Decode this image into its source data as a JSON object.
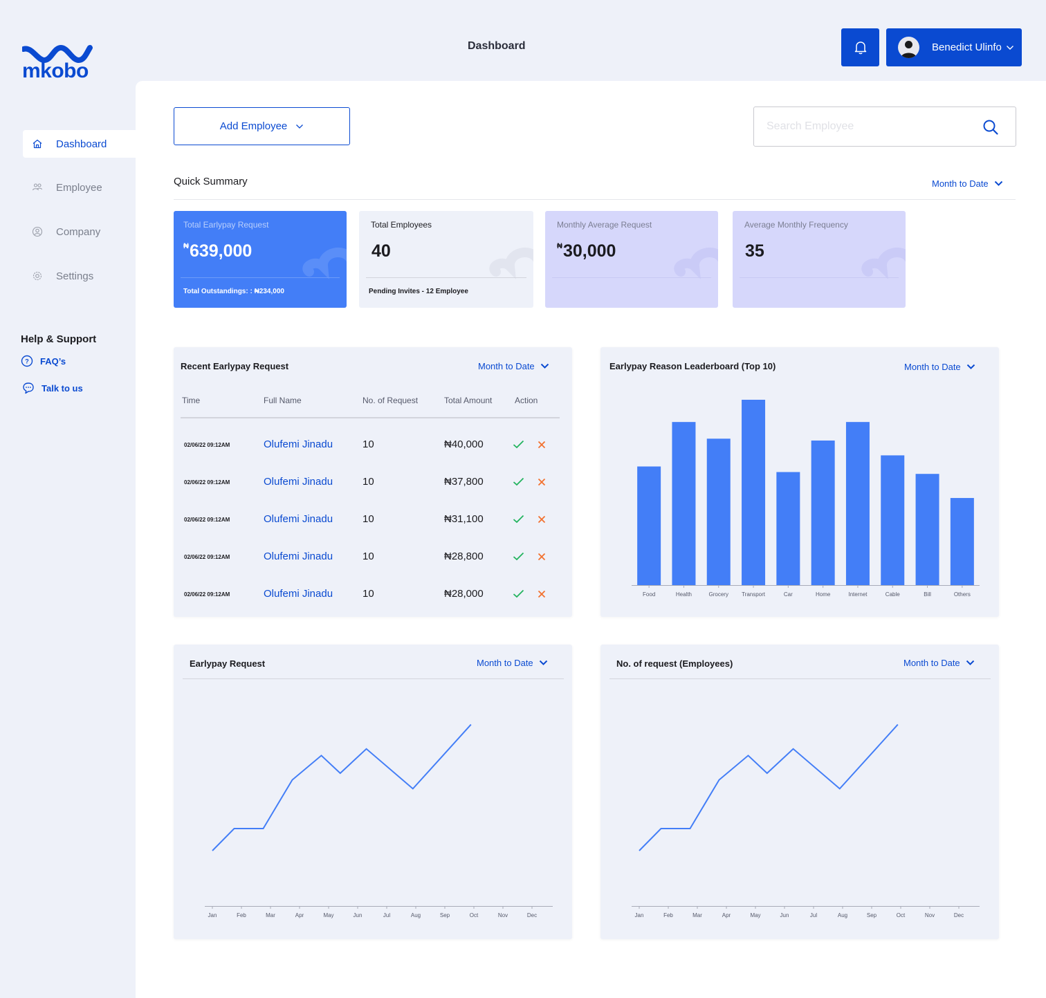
{
  "brand": {
    "name": "mkobo",
    "color": "#0a4ad1"
  },
  "header": {
    "title": "Dashboard",
    "user_name": "Benedict Ulinfo",
    "bell_icon": "bell-icon"
  },
  "sidebar": {
    "items": [
      {
        "label": "Dashboard",
        "icon": "home-icon",
        "active": true
      },
      {
        "label": "Employee",
        "icon": "users-icon",
        "active": false
      },
      {
        "label": "Company",
        "icon": "user-circle-icon",
        "active": false
      },
      {
        "label": "Settings",
        "icon": "gear-icon",
        "active": false
      }
    ],
    "help": {
      "title": "Help & Support",
      "faq": "FAQ’s",
      "talk": "Talk to us"
    }
  },
  "toolbar": {
    "add_employee": "Add Employee",
    "search_placeholder": "Search Employee"
  },
  "summary": {
    "title": "Quick Summary",
    "period": "Month to Date",
    "cards": [
      {
        "label": "Total Earlypay Request",
        "currency": "₦",
        "value": "639,000",
        "footer": "Total Outstandings:  : ₦234,000",
        "bg": "#437ef7"
      },
      {
        "label": "Total Employees",
        "currency": "",
        "value": "40",
        "footer": "Pending Invites - 12 Employee",
        "bg": "#eef1f9"
      },
      {
        "label": "Monthly Average Request",
        "currency": "₦",
        "value": "30,000",
        "footer": "",
        "bg": "#d6d7fb"
      },
      {
        "label": "Average Monthly Frequency",
        "currency": "",
        "value": "35",
        "footer": "",
        "bg": "#d6d7fb"
      }
    ]
  },
  "recent": {
    "title": "Recent Earlypay Request",
    "period": "Month to Date",
    "columns": [
      "Time",
      "Full Name",
      "No. of Request",
      "Total Amount",
      "Action"
    ],
    "rows": [
      {
        "time": "02/06/22 09:12AM",
        "name": "Olufemi Jinadu",
        "count": "10",
        "amount": "₦40,000"
      },
      {
        "time": "02/06/22 09:12AM",
        "name": "Olufemi Jinadu",
        "count": "10",
        "amount": "₦37,800"
      },
      {
        "time": "02/06/22 09:12AM",
        "name": "Olufemi Jinadu",
        "count": "10",
        "amount": "₦31,100"
      },
      {
        "time": "02/06/22 09:12AM",
        "name": "Olufemi Jinadu",
        "count": "10",
        "amount": "₦28,800"
      },
      {
        "time": "02/06/22 09:12AM",
        "name": "Olufemi Jinadu",
        "count": "10",
        "amount": "₦28,000"
      }
    ],
    "accept_color": "#22b35e",
    "reject_color": "#f2712f"
  },
  "leaderboard": {
    "title": "Earlypay Reason Leaderboard  (Top 10)",
    "period": "Month to Date"
  },
  "earlypay_chart": {
    "title": "Earlypay Request",
    "period": "Month to Date"
  },
  "employees_chart": {
    "title": "No. of request (Employees)",
    "period": "Month to Date"
  },
  "chart_data": [
    {
      "type": "bar",
      "title": "Earlypay Reason Leaderboard  (Top 10)",
      "categories": [
        "Food",
        "Health",
        "Grocery",
        "Transport",
        "Car",
        "Home",
        "Internet",
        "Cable",
        "Bill",
        "Others"
      ],
      "values": [
        64,
        88,
        79,
        100,
        61,
        78,
        88,
        70,
        60,
        47
      ],
      "ylim": [
        0,
        100
      ],
      "grid": false,
      "color": "#437ef7"
    },
    {
      "type": "line",
      "title": "Earlypay Request",
      "categories": [
        "Jan",
        "Feb",
        "Mar",
        "Apr",
        "May",
        "Jun",
        "Jul",
        "Aug",
        "Sep",
        "Oct",
        "Nov",
        "Dec"
      ],
      "x": [
        0.0,
        0.75,
        1.75,
        2.75,
        3.75,
        4.4,
        5.3,
        6.9,
        8.9
      ],
      "values": [
        25,
        35,
        35,
        57,
        68,
        60,
        71,
        53,
        82
      ],
      "ylim": [
        0,
        100
      ],
      "grid": false,
      "color": "#437ef7"
    },
    {
      "type": "line",
      "title": "No. of request (Employees)",
      "categories": [
        "Jan",
        "Feb",
        "Mar",
        "Apr",
        "May",
        "Jun",
        "Jul",
        "Aug",
        "Sep",
        "Oct",
        "Nov",
        "Dec"
      ],
      "x": [
        0.0,
        0.75,
        1.75,
        2.75,
        3.75,
        4.4,
        5.3,
        6.9,
        8.9
      ],
      "values": [
        25,
        35,
        35,
        57,
        68,
        60,
        71,
        53,
        82
      ],
      "ylim": [
        0,
        100
      ],
      "grid": false,
      "color": "#437ef7"
    }
  ]
}
